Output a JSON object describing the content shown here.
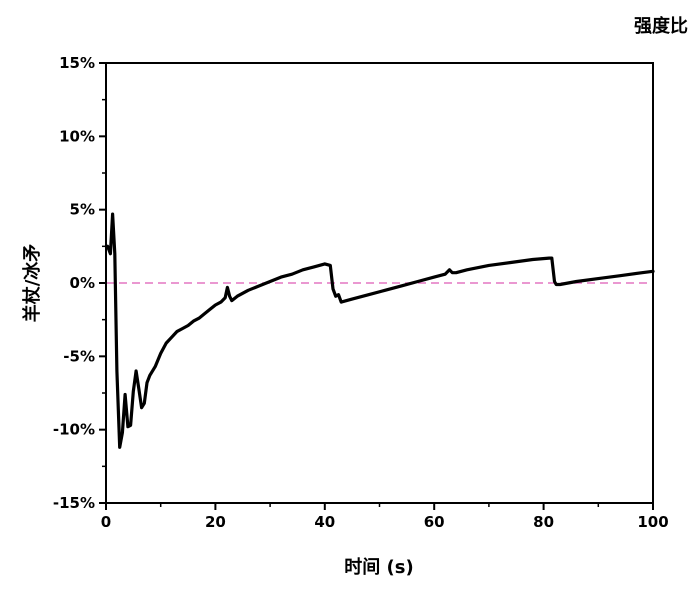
{
  "chart_data": {
    "type": "line",
    "title": "强度比",
    "xlabel": "时间 (s)",
    "ylabel": "羊杖/冰矛",
    "xlim": [
      0,
      100
    ],
    "ylim": [
      -15,
      15
    ],
    "x_ticks": [
      0,
      20,
      40,
      60,
      80,
      100
    ],
    "y_ticks": [
      -15,
      -10,
      -5,
      0,
      5,
      10,
      15
    ],
    "x_tick_labels": [
      "0",
      "20",
      "40",
      "60",
      "80",
      "100"
    ],
    "y_tick_labels": [
      "-15%",
      "-10%",
      "-5%",
      "0%",
      "5%",
      "10%",
      "15%"
    ],
    "grid": false,
    "reference_line": {
      "y": 0,
      "color": "#e377c2",
      "style": "dashed"
    },
    "series": [
      {
        "color": "#000000",
        "x": [
          0.3,
          0.8,
          1.2,
          1.6,
          2.0,
          2.5,
          3.0,
          3.5,
          4.0,
          4.5,
          5.0,
          5.5,
          6.0,
          6.5,
          7.0,
          7.5,
          8.0,
          9.0,
          10.0,
          11.0,
          12.0,
          13.0,
          14.0,
          15.0,
          16.0,
          17.0,
          18.0,
          19.0,
          20.0,
          21.0,
          21.8,
          22.2,
          22.6,
          23.0,
          24.0,
          26.0,
          28.0,
          30.0,
          32.0,
          34.0,
          36.0,
          38.0,
          40.0,
          41.0,
          41.5,
          42.0,
          42.5,
          43.0,
          45.0,
          48.0,
          51.0,
          54.0,
          57.0,
          60.0,
          62.0,
          62.8,
          63.3,
          64.0,
          66.0,
          70.0,
          74.0,
          78.0,
          81.0,
          81.5,
          82.0,
          82.3,
          83.0,
          86.0,
          90.0,
          94.0,
          98.0,
          100.0
        ],
        "y": [
          2.5,
          2.0,
          4.7,
          2.0,
          -6.0,
          -11.2,
          -10.2,
          -7.6,
          -9.8,
          -9.7,
          -7.4,
          -6.0,
          -7.2,
          -8.5,
          -8.2,
          -6.8,
          -6.3,
          -5.7,
          -4.8,
          -4.1,
          -3.7,
          -3.3,
          -3.1,
          -2.9,
          -2.6,
          -2.4,
          -2.1,
          -1.8,
          -1.5,
          -1.3,
          -1.0,
          -0.3,
          -0.9,
          -1.2,
          -0.9,
          -0.5,
          -0.2,
          0.1,
          0.4,
          0.6,
          0.9,
          1.1,
          1.3,
          1.2,
          -0.4,
          -0.9,
          -0.8,
          -1.3,
          -1.1,
          -0.8,
          -0.5,
          -0.2,
          0.1,
          0.4,
          0.6,
          0.9,
          0.7,
          0.7,
          0.9,
          1.2,
          1.4,
          1.6,
          1.7,
          1.7,
          0.1,
          -0.1,
          -0.1,
          0.1,
          0.3,
          0.5,
          0.7,
          0.8
        ]
      }
    ]
  }
}
